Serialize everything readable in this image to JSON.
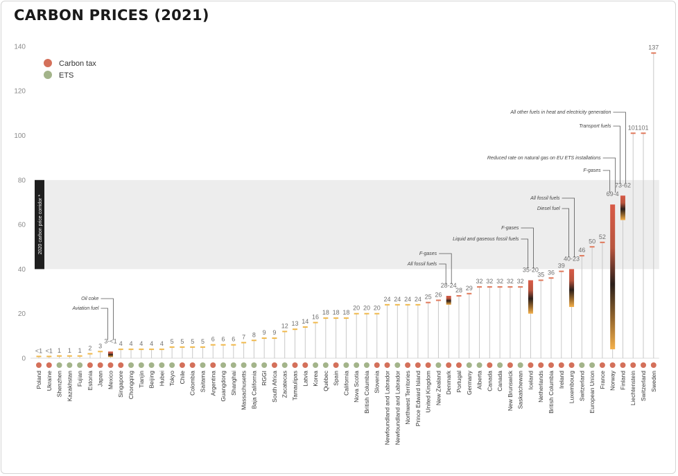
{
  "title": "CARBON PRICES (2021)",
  "legend": [
    {
      "label": "Carbon tax",
      "color": "#d4705a"
    },
    {
      "label": "ETS",
      "color": "#a3b48a"
    }
  ],
  "corridor": {
    "label": "2020 carbon price corridor *",
    "low": 40,
    "high": 80
  },
  "chart_data": {
    "type": "bar",
    "title": "CARBON PRICES (2021)",
    "ylim": [
      0,
      140
    ],
    "yticks": [
      0,
      20,
      40,
      60,
      80,
      100,
      120,
      140
    ],
    "categories": [
      "Poland",
      "Ukraine",
      "Shenzhen",
      "Kazakhstan",
      "Fujian",
      "Estonia",
      "Japan",
      "Mexico",
      "Singapore",
      "Chongqing",
      "Tianjin",
      "Beijing",
      "Hubei",
      "Tokyo",
      "Chile",
      "Colombia",
      "Saitama",
      "Argentina",
      "Guangdong",
      "Shanghai",
      "Massachusetts",
      "Baja California",
      "RGGI",
      "South Africa",
      "Zacatecas",
      "Tamaulipas",
      "Latvia",
      "Korea",
      "Québec",
      "Spain",
      "California",
      "Nova Scotia",
      "British Columbia",
      "Slovenia",
      "Newfoundland and Labrador",
      "Newfoundland and Labrador",
      "Northwest Territories",
      "Prince Edward Island",
      "United Kingdom",
      "New Zealand",
      "Denmark",
      "Portugal",
      "Germany",
      "Alberta",
      "Canada",
      "Canada",
      "New Brunswick",
      "Saskatchewan",
      "Iceland",
      "Netherlands",
      "British Columbia",
      "Ireland",
      "Luxembourg",
      "Switzerland",
      "European Union",
      "France",
      "Norway",
      "Finland",
      "Liechtenstein",
      "Switzerland",
      "Sweden"
    ],
    "instruments": [
      "tax",
      "tax",
      "ets",
      "ets",
      "ets",
      "tax",
      "tax",
      "tax",
      "tax",
      "ets",
      "ets",
      "ets",
      "ets",
      "ets",
      "tax",
      "tax",
      "ets",
      "tax",
      "ets",
      "ets",
      "ets",
      "ets",
      "ets",
      "tax",
      "ets",
      "tax",
      "tax",
      "ets",
      "ets",
      "tax",
      "ets",
      "ets",
      "ets",
      "tax",
      "tax",
      "ets",
      "tax",
      "tax",
      "tax",
      "ets",
      "tax",
      "tax",
      "ets",
      "ets",
      "tax",
      "ets",
      "tax",
      "ets",
      "tax",
      "tax",
      "tax",
      "tax",
      "tax",
      "ets",
      "ets",
      "tax",
      "tax",
      "tax",
      "tax",
      "tax",
      "tax"
    ],
    "values": [
      0.8,
      0.8,
      1,
      1,
      1,
      2,
      3,
      3,
      4,
      4,
      4,
      4,
      4,
      5,
      5,
      5,
      5,
      6,
      6,
      6,
      7,
      8,
      9,
      9,
      12,
      13,
      14,
      16,
      18,
      18,
      18,
      20,
      20,
      20,
      24,
      24,
      24,
      24,
      25,
      26,
      28,
      28,
      29,
      32,
      32,
      32,
      32,
      32,
      35,
      35,
      36,
      39,
      40,
      46,
      50,
      52,
      69,
      73,
      101,
      101,
      137
    ],
    "ranges": [
      null,
      null,
      null,
      null,
      null,
      null,
      null,
      [
        0.5,
        3
      ],
      null,
      null,
      null,
      null,
      null,
      null,
      null,
      null,
      null,
      null,
      null,
      null,
      null,
      null,
      null,
      null,
      null,
      null,
      null,
      null,
      null,
      null,
      null,
      null,
      null,
      null,
      null,
      null,
      null,
      null,
      null,
      null,
      [
        24,
        28
      ],
      null,
      null,
      null,
      null,
      null,
      null,
      null,
      [
        20,
        35
      ],
      null,
      null,
      null,
      [
        23,
        40
      ],
      null,
      null,
      null,
      [
        4,
        69
      ],
      [
        62,
        73
      ],
      null,
      null,
      null
    ],
    "value_labels": [
      "<1",
      "<1",
      "1",
      "1",
      "1",
      "2",
      "3",
      "3-<1",
      "4",
      "4",
      "4",
      "4",
      "4",
      "5",
      "5",
      "5",
      "5",
      "6",
      "6",
      "6",
      "7",
      "8",
      "9",
      "9",
      "12",
      "13",
      "14",
      "16",
      "18",
      "18",
      "18",
      "20",
      "20",
      "20",
      "24",
      "24",
      "24",
      "24",
      "25",
      "26",
      "28-24",
      "28",
      "29",
      "32",
      "32",
      "32",
      "32",
      "32",
      "35-20",
      "35",
      "36",
      "39",
      "40-23",
      "46",
      "50",
      "52",
      "69-4",
      "73-62",
      "101",
      "101",
      "137"
    ],
    "annotations": [
      {
        "index": 7,
        "lines": [
          "Oil coke",
          "Aviation fuel"
        ]
      },
      {
        "index": 40,
        "lines": [
          "F-gases",
          "All fossil fuels"
        ]
      },
      {
        "index": 48,
        "lines": [
          "F-gases",
          "Liquid and gaseous fossil fuels"
        ]
      },
      {
        "index": 52,
        "lines": [
          "All fossil fuels",
          "Diesel fuel"
        ]
      },
      {
        "index": 56,
        "lines": [
          "Reduced rate on natural gas on EU ETS installations",
          "F-gases"
        ]
      },
      {
        "index": 57,
        "lines": [
          "All other fuels in heat and electricity generation",
          "Transport fuels"
        ]
      }
    ]
  }
}
